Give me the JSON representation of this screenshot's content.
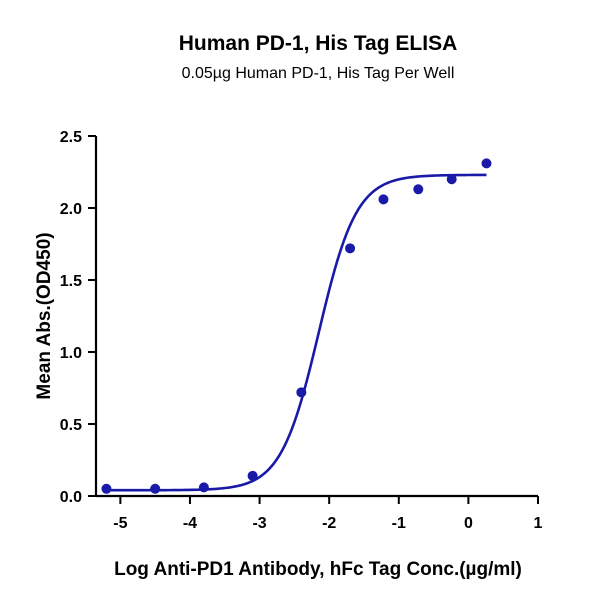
{
  "chart_data": {
    "type": "scatter",
    "title": "Human PD-1, His Tag ELISA",
    "subtitle": "0.05µg Human PD-1, His Tag Per Well",
    "xlabel": "Log Anti-PD1 Antibody, hFc Tag Conc.(µg/ml)",
    "ylabel": "Mean Abs.(OD450)",
    "xlim": [
      -5.35,
      1.0
    ],
    "ylim": [
      0.0,
      2.5
    ],
    "xticks": [
      -5,
      -4,
      -3,
      -2,
      -1,
      0,
      1
    ],
    "xtick_labels": [
      "-5",
      "-4",
      "-3",
      "-2",
      "-1",
      "0",
      "1"
    ],
    "yticks": [
      0.0,
      0.5,
      1.0,
      1.5,
      2.0,
      2.5
    ],
    "ytick_labels": [
      "0.0",
      "0.5",
      "1.0",
      "1.5",
      "2.0",
      "2.5"
    ],
    "grid": false,
    "color": "#1a1aa8",
    "series": [
      {
        "points": [
          {
            "x": -5.2,
            "y": 0.05
          },
          {
            "x": -4.5,
            "y": 0.05
          },
          {
            "x": -3.8,
            "y": 0.06
          },
          {
            "x": -3.1,
            "y": 0.14
          },
          {
            "x": -2.4,
            "y": 0.72
          },
          {
            "x": -1.7,
            "y": 1.72
          },
          {
            "x": -1.22,
            "y": 2.06
          },
          {
            "x": -0.72,
            "y": 2.13
          },
          {
            "x": -0.24,
            "y": 2.2
          },
          {
            "x": 0.26,
            "y": 2.31
          }
        ],
        "fit": {
          "model": "4PL",
          "bottom": 0.04,
          "top": 2.23,
          "logEC50": -2.15,
          "hill": 1.6
        }
      }
    ]
  }
}
